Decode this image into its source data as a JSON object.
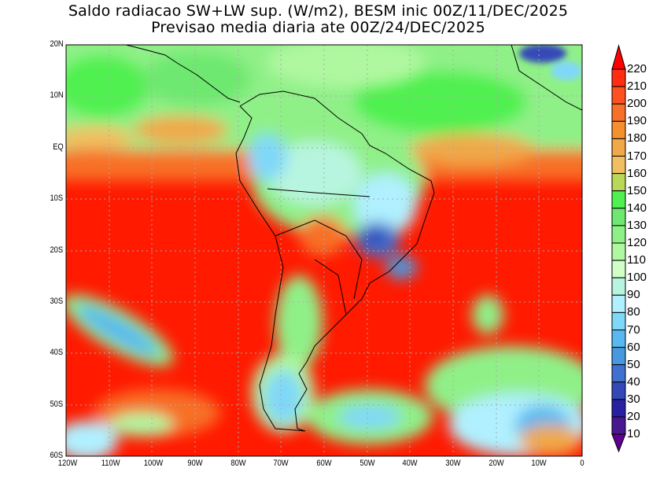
{
  "title": {
    "line1": "Saldo radiacao SW+LW sup. (W/m2), BESM inic 00Z/11/DEC/2025",
    "line2": "Previsao media diaria ate 00Z/24/DEC/2025"
  },
  "axes": {
    "lat_labels": [
      "20N",
      "10N",
      "EQ",
      "10S",
      "20S",
      "30S",
      "40S",
      "50S",
      "60S"
    ],
    "lon_labels": [
      "120W",
      "110W",
      "100W",
      "90W",
      "80W",
      "70W",
      "60W",
      "50W",
      "40W",
      "30W",
      "20W",
      "10W",
      "0"
    ]
  },
  "colorbar": {
    "labels": [
      "220",
      "210",
      "200",
      "190",
      "180",
      "170",
      "160",
      "150",
      "140",
      "130",
      "120",
      "110",
      "100",
      "90",
      "80",
      "70",
      "60",
      "50",
      "40",
      "30",
      "20",
      "10"
    ],
    "colors": [
      "#ff0000",
      "#ff2e12",
      "#ff5020",
      "#f87028",
      "#f59030",
      "#f0a848",
      "#f0c060",
      "#b8d858",
      "#50f050",
      "#6ee870",
      "#90f088",
      "#b0f8a0",
      "#d0ffc8",
      "#b8f5e0",
      "#b0f0ff",
      "#80d8f8",
      "#58b8f0",
      "#4898e0",
      "#4070d0",
      "#3448b8",
      "#2820a0",
      "#481890",
      "#600090"
    ]
  }
}
